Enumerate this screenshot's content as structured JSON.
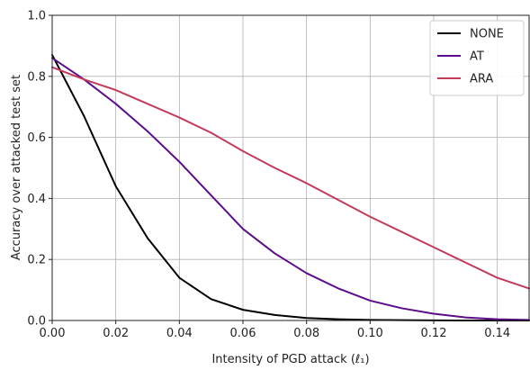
{
  "chart_data": {
    "type": "line",
    "xlabel": "Intensity of PGD attack (ℓ₁)",
    "ylabel": "Accuracy over attacked test set",
    "xlim": [
      0,
      0.15
    ],
    "ylim": [
      0,
      1.0
    ],
    "x_ticks": [
      "0.00",
      "0.02",
      "0.04",
      "0.06",
      "0.08",
      "0.10",
      "0.12",
      "0.14"
    ],
    "y_ticks": [
      "0.0",
      "0.2",
      "0.4",
      "0.6",
      "0.8",
      "1.0"
    ],
    "grid": true,
    "legend_position": "top-right",
    "series": [
      {
        "name": "NONE",
        "color": "#000000",
        "x": [
          0.0,
          0.01,
          0.02,
          0.03,
          0.04,
          0.05,
          0.06,
          0.07,
          0.08,
          0.09,
          0.1,
          0.11,
          0.12,
          0.13,
          0.14,
          0.15
        ],
        "y": [
          0.87,
          0.67,
          0.44,
          0.27,
          0.14,
          0.07,
          0.035,
          0.018,
          0.008,
          0.004,
          0.002,
          0.001,
          0.0005,
          0.0,
          0.0,
          0.0
        ]
      },
      {
        "name": "AT",
        "color": "#5b0d8a",
        "x": [
          0.0,
          0.01,
          0.02,
          0.03,
          0.04,
          0.05,
          0.06,
          0.07,
          0.08,
          0.09,
          0.1,
          0.11,
          0.12,
          0.13,
          0.14,
          0.15
        ],
        "y": [
          0.86,
          0.79,
          0.71,
          0.62,
          0.52,
          0.41,
          0.3,
          0.22,
          0.155,
          0.105,
          0.065,
          0.04,
          0.022,
          0.01,
          0.004,
          0.002
        ]
      },
      {
        "name": "ARA",
        "color": "#c23b5a",
        "x": [
          0.0,
          0.01,
          0.02,
          0.03,
          0.04,
          0.05,
          0.06,
          0.07,
          0.08,
          0.09,
          0.1,
          0.11,
          0.12,
          0.13,
          0.14,
          0.15
        ],
        "y": [
          0.83,
          0.79,
          0.755,
          0.71,
          0.665,
          0.615,
          0.555,
          0.5,
          0.45,
          0.395,
          0.34,
          0.29,
          0.24,
          0.19,
          0.14,
          0.105
        ]
      }
    ]
  }
}
